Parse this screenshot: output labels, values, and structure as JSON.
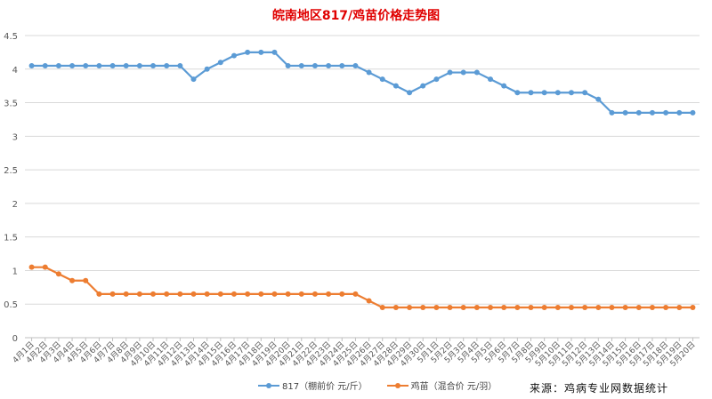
{
  "chart_data": {
    "type": "line",
    "title": "皖南地区817/鸡苗价格走势图",
    "xlabel": "",
    "ylabel": "",
    "ylim": [
      0,
      4.5
    ],
    "yticks": [
      "0",
      "0.5",
      "1",
      "1.5",
      "2",
      "2.5",
      "3",
      "3.5",
      "4",
      "4.5"
    ],
    "grid": true,
    "legend_position": "bottom",
    "categories": [
      "4月1日",
      "4月2日",
      "4月3日",
      "4月4日",
      "4月5日",
      "4月6日",
      "4月7日",
      "4月8日",
      "4月9日",
      "4月10日",
      "4月11日",
      "4月12日",
      "4月13日",
      "4月14日",
      "4月15日",
      "4月16日",
      "4月17日",
      "4月18日",
      "4月19日",
      "4月20日",
      "4月21日",
      "4月22日",
      "4月23日",
      "4月24日",
      "4月25日",
      "4月26日",
      "4月27日",
      "4月28日",
      "4月29日",
      "4月30日",
      "5月1日",
      "5月2日",
      "5月3日",
      "5月4日",
      "5月5日",
      "5月6日",
      "5月7日",
      "5月8日",
      "5月9日",
      "5月10日",
      "5月11日",
      "5月12日",
      "5月13日",
      "5月14日",
      "5月15日",
      "5月16日",
      "5月17日",
      "5月18日",
      "5月19日",
      "5月20日"
    ],
    "series": [
      {
        "name": "817（棚前价 元/斤）",
        "color": "#5b9bd5",
        "values": [
          4.05,
          4.05,
          4.05,
          4.05,
          4.05,
          4.05,
          4.05,
          4.05,
          4.05,
          4.05,
          4.05,
          4.05,
          3.85,
          4.0,
          4.1,
          4.2,
          4.25,
          4.25,
          4.25,
          4.05,
          4.05,
          4.05,
          4.05,
          4.05,
          4.05,
          3.95,
          3.85,
          3.75,
          3.65,
          3.75,
          3.85,
          3.95,
          3.95,
          3.95,
          3.85,
          3.75,
          3.65,
          3.65,
          3.65,
          3.65,
          3.65,
          3.65,
          3.55,
          3.35,
          3.35,
          3.35,
          3.35,
          3.35,
          3.35,
          3.35
        ]
      },
      {
        "name": "鸡苗（混合价 元/羽）",
        "color": "#ed7d31",
        "values": [
          1.05,
          1.05,
          0.95,
          0.85,
          0.85,
          0.65,
          0.65,
          0.65,
          0.65,
          0.65,
          0.65,
          0.65,
          0.65,
          0.65,
          0.65,
          0.65,
          0.65,
          0.65,
          0.65,
          0.65,
          0.65,
          0.65,
          0.65,
          0.65,
          0.65,
          0.55,
          0.45,
          0.45,
          0.45,
          0.45,
          0.45,
          0.45,
          0.45,
          0.45,
          0.45,
          0.45,
          0.45,
          0.45,
          0.45,
          0.45,
          0.45,
          0.45,
          0.45,
          0.45,
          0.45,
          0.45,
          0.45,
          0.45,
          0.45,
          0.45
        ]
      }
    ]
  },
  "source_note": "来源：鸡病专业网数据统计"
}
